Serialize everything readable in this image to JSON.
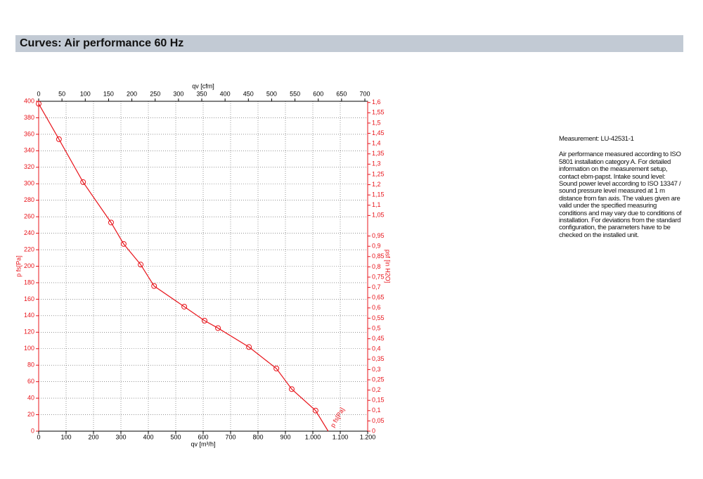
{
  "header": {
    "title": "Curves: Air performance 60 Hz"
  },
  "chart_data": {
    "type": "line",
    "x_label": "qv [m³/h]",
    "x2_label": "qv [cfm]",
    "y_label": "p fs[Pa]",
    "y2_label": "psf [in H2O]",
    "annotation": "p fs[Pa]",
    "xlim": [
      0,
      1200
    ],
    "ylim": [
      0,
      400
    ],
    "x2lim": [
      0,
      706
    ],
    "y2lim": [
      0,
      1.606
    ],
    "xticks": [
      0,
      100,
      200,
      300,
      400,
      500,
      600,
      700,
      800,
      900,
      {
        "value": 1000,
        "label": "1.000"
      },
      {
        "value": 1100,
        "label": "1.100"
      },
      {
        "value": 1200,
        "label": "1.200"
      }
    ],
    "yticks": [
      0,
      20,
      40,
      60,
      80,
      100,
      120,
      140,
      160,
      180,
      200,
      220,
      240,
      260,
      280,
      300,
      320,
      340,
      360,
      380,
      400
    ],
    "x2ticks": [
      0,
      50,
      100,
      150,
      200,
      250,
      300,
      350,
      400,
      450,
      500,
      550,
      600,
      650,
      700
    ],
    "y2ticks": [
      0,
      {
        "value": 0.05,
        "label": "0,05"
      },
      {
        "value": 0.1,
        "label": "0,1"
      },
      {
        "value": 0.15,
        "label": "0,15"
      },
      {
        "value": 0.2,
        "label": "0,2"
      },
      {
        "value": 0.25,
        "label": "0,25"
      },
      {
        "value": 0.3,
        "label": "0,3"
      },
      {
        "value": 0.35,
        "label": "0,35"
      },
      {
        "value": 0.4,
        "label": "0,4"
      },
      {
        "value": 0.45,
        "label": "0,45"
      },
      {
        "value": 0.5,
        "label": "0,5"
      },
      {
        "value": 0.55,
        "label": "0,55"
      },
      {
        "value": 0.6,
        "label": "0,6"
      },
      {
        "value": 0.65,
        "label": "0,65"
      },
      {
        "value": 0.7,
        "label": "0,7"
      },
      {
        "value": 0.75,
        "label": "0,75"
      },
      {
        "value": 0.8,
        "label": "0,8"
      },
      {
        "value": 0.85,
        "label": "0,85"
      },
      {
        "value": 0.9,
        "label": "0,9"
      },
      {
        "value": 0.95,
        "label": "0,95"
      },
      {
        "value": 1.05,
        "label": "1,05"
      },
      {
        "value": 1.1,
        "label": "1,1"
      },
      {
        "value": 1.15,
        "label": "1,15"
      },
      {
        "value": 1.2,
        "label": "1,2"
      },
      {
        "value": 1.25,
        "label": "1,25"
      },
      {
        "value": 1.3,
        "label": "1,3"
      },
      {
        "value": 1.35,
        "label": "1,35"
      },
      {
        "value": 1.4,
        "label": "1,4"
      },
      {
        "value": 1.45,
        "label": "1,45"
      },
      {
        "value": 1.5,
        "label": "1,5"
      },
      {
        "value": 1.55,
        "label": "1,55"
      },
      {
        "value": 1.6,
        "label": "1,6"
      }
    ],
    "grid": true,
    "series": [
      {
        "name": "p fs[Pa]",
        "color": "#e8141b",
        "x": [
          0,
          74,
          162,
          264,
          310,
          372,
          421,
          531,
          605,
          654,
          767,
          867,
          923,
          1010,
          1056
        ],
        "values": [
          397,
          354,
          302,
          253,
          227,
          202,
          176,
          151,
          134,
          125,
          102,
          76,
          51,
          25,
          0
        ]
      }
    ]
  },
  "notes": {
    "measurement": "Measurement: LU-42531-1",
    "lines": [
      "Air performance measured according to ISO",
      "5801 installation category A. For detailed",
      "information on the measurement setup,",
      "contact ebm-papst. Intake sound level:",
      "Sound power level according to ISO 13347 /",
      "sound pressure level measured at 1 m",
      "distance from fan axis. The values given are",
      "valid under the specified measuring",
      "conditions and may vary due to conditions of",
      "installation. For deviations from the standard",
      "configuration, the parameters have to be",
      "checked on the installed unit."
    ]
  }
}
